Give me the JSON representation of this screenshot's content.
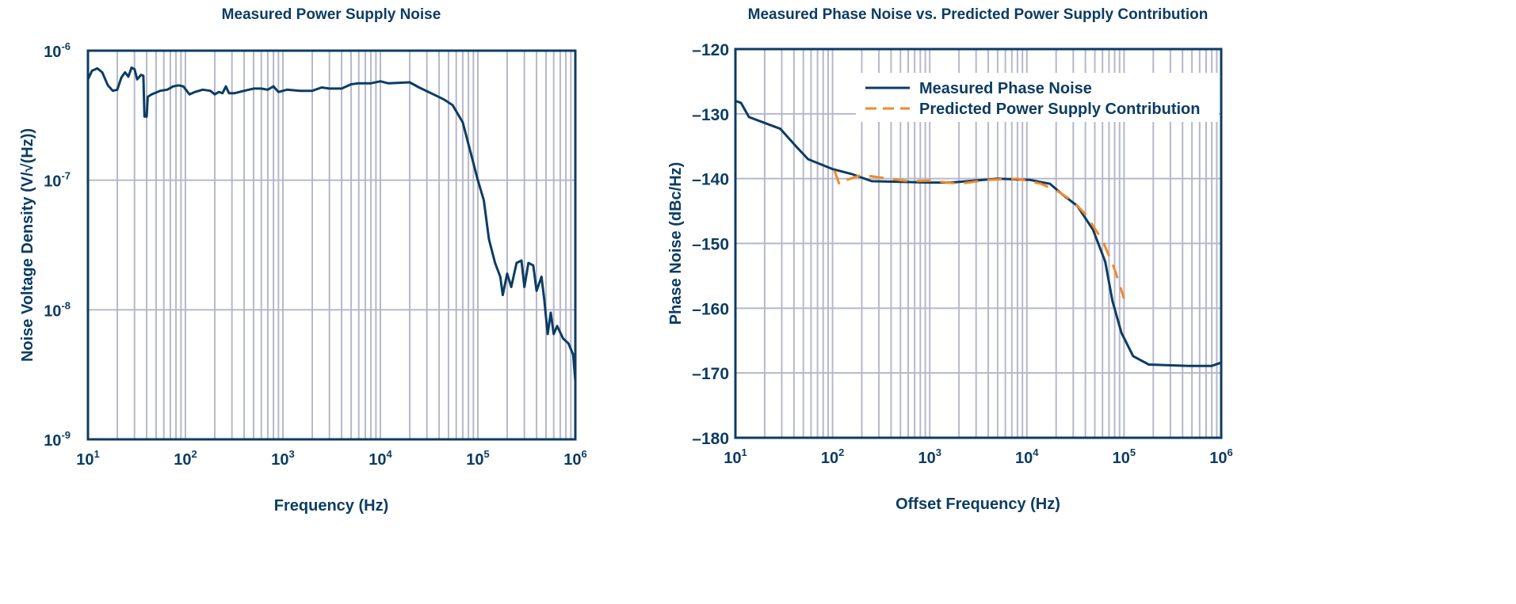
{
  "colors": {
    "navy": "#0c3c63",
    "grid": "#b6b8ca",
    "orange": "#f08a2a"
  },
  "chart_data": [
    {
      "type": "line",
      "title": "Measured Power Supply Noise",
      "xlabel": "Frequency (Hz)",
      "ylabel": "Noise Voltage Density (V/√(Hz))",
      "xscale": "log",
      "yscale": "log",
      "xlim": [
        10,
        1000000
      ],
      "ylim": [
        1e-09,
        1e-06
      ],
      "grid": true,
      "xticks": [
        {
          "base": "10",
          "exp": "1"
        },
        {
          "base": "10",
          "exp": "2"
        },
        {
          "base": "10",
          "exp": "3"
        },
        {
          "base": "10",
          "exp": "4"
        },
        {
          "base": "10",
          "exp": "5"
        },
        {
          "base": "10",
          "exp": "6"
        }
      ],
      "yticks": [
        {
          "base": "10",
          "exp": "-6"
        },
        {
          "base": "10",
          "exp": "-7"
        },
        {
          "base": "10",
          "exp": "-8"
        },
        {
          "base": "10",
          "exp": "-9"
        }
      ],
      "series": [
        {
          "name": "Measured Power Supply Noise",
          "style": "solid",
          "points": [
            [
              10,
              6e-07
            ],
            [
              11,
              7e-07
            ],
            [
              12.5,
              7.3e-07
            ],
            [
              14,
              6.8e-07
            ],
            [
              16,
              5.4e-07
            ],
            [
              18,
              4.9e-07
            ],
            [
              20,
              5e-07
            ],
            [
              22,
              6.2e-07
            ],
            [
              24,
              6.8e-07
            ],
            [
              26,
              6.3e-07
            ],
            [
              28,
              7.4e-07
            ],
            [
              30,
              7.2e-07
            ],
            [
              32,
              6e-07
            ],
            [
              35,
              6.5e-07
            ],
            [
              37,
              6.4e-07
            ],
            [
              38,
              3.1e-07
            ],
            [
              40,
              3.1e-07
            ],
            [
              41,
              4.4e-07
            ],
            [
              45,
              4.6e-07
            ],
            [
              55,
              4.9e-07
            ],
            [
              65,
              5e-07
            ],
            [
              75,
              5.3e-07
            ],
            [
              85,
              5.4e-07
            ],
            [
              95,
              5.3e-07
            ],
            [
              110,
              4.6e-07
            ],
            [
              125,
              4.8e-07
            ],
            [
              150,
              5e-07
            ],
            [
              180,
              4.9e-07
            ],
            [
              200,
              4.6e-07
            ],
            [
              220,
              4.8e-07
            ],
            [
              240,
              4.7e-07
            ],
            [
              260,
              5.3e-07
            ],
            [
              280,
              4.7e-07
            ],
            [
              320,
              4.7e-07
            ],
            [
              400,
              4.9e-07
            ],
            [
              500,
              5.1e-07
            ],
            [
              600,
              5.1e-07
            ],
            [
              700,
              5e-07
            ],
            [
              800,
              5.3e-07
            ],
            [
              900,
              4.8e-07
            ],
            [
              1100,
              5e-07
            ],
            [
              1500,
              4.9e-07
            ],
            [
              2000,
              4.9e-07
            ],
            [
              2500,
              5.2e-07
            ],
            [
              3000,
              5.1e-07
            ],
            [
              4000,
              5.1e-07
            ],
            [
              5000,
              5.5e-07
            ],
            [
              6000,
              5.6e-07
            ],
            [
              8000,
              5.6e-07
            ],
            [
              10000,
              5.8e-07
            ],
            [
              12000,
              5.6e-07
            ],
            [
              20000,
              5.7e-07
            ],
            [
              25000,
              5.2e-07
            ],
            [
              35000,
              4.6e-07
            ],
            [
              45000,
              4.2e-07
            ],
            [
              55000,
              3.8e-07
            ],
            [
              70000,
              2.8e-07
            ],
            [
              85000,
              1.6e-07
            ],
            [
              100000,
              1e-07
            ],
            [
              115000,
              7e-08
            ],
            [
              130000,
              3.5e-08
            ],
            [
              150000,
              2.3e-08
            ],
            [
              170000,
              1.8e-08
            ],
            [
              180000,
              1.3e-08
            ],
            [
              200000,
              1.9e-08
            ],
            [
              220000,
              1.5e-08
            ],
            [
              250000,
              2.3e-08
            ],
            [
              280000,
              2.4e-08
            ],
            [
              300000,
              1.5e-08
            ],
            [
              330000,
              2.3e-08
            ],
            [
              370000,
              2.2e-08
            ],
            [
              400000,
              1.4e-08
            ],
            [
              450000,
              1.8e-08
            ],
            [
              480000,
              1.2e-08
            ],
            [
              520000,
              6.5e-09
            ],
            [
              560000,
              9.5e-09
            ],
            [
              600000,
              6.5e-09
            ],
            [
              650000,
              7.5e-09
            ],
            [
              750000,
              6e-09
            ],
            [
              850000,
              5.5e-09
            ],
            [
              950000,
              4.5e-09
            ],
            [
              1000000,
              2.8e-09
            ]
          ]
        }
      ]
    },
    {
      "type": "line",
      "title": "Measured Phase Noise vs. Predicted Power Supply Contribution",
      "xlabel": "Offset Frequency (Hz)",
      "ylabel": "Phase Noise (dBc/Hz)",
      "xscale": "log",
      "yscale": "linear",
      "xlim": [
        10,
        1000000
      ],
      "ylim": [
        -180,
        -120
      ],
      "grid": true,
      "legend_position": "top-right",
      "xticks": [
        {
          "base": "10",
          "exp": "1"
        },
        {
          "base": "10",
          "exp": "2"
        },
        {
          "base": "10",
          "exp": "3"
        },
        {
          "base": "10",
          "exp": "4"
        },
        {
          "base": "10",
          "exp": "5"
        },
        {
          "base": "10",
          "exp": "6"
        }
      ],
      "yticks": [
        "–120",
        "–130",
        "–140",
        "–150",
        "–160",
        "–170",
        "–180"
      ],
      "ytick_values": [
        -120,
        -130,
        -140,
        -150,
        -160,
        -170,
        -180
      ],
      "series": [
        {
          "name": "Measured Phase Noise",
          "style": "solid",
          "points": [
            [
              10,
              -128
            ],
            [
              11.4,
              -128.3
            ],
            [
              13.8,
              -130.5
            ],
            [
              20,
              -131.4
            ],
            [
              29,
              -132.3
            ],
            [
              42,
              -135
            ],
            [
              56,
              -137
            ],
            [
              99,
              -138.5
            ],
            [
              158,
              -139.3
            ],
            [
              253,
              -140.4
            ],
            [
              1000,
              -140.6
            ],
            [
              1650,
              -140.6
            ],
            [
              5000,
              -140.0
            ],
            [
              10800,
              -140.2
            ],
            [
              17300,
              -140.8
            ],
            [
              23000,
              -142.4
            ],
            [
              33000,
              -144.2
            ],
            [
              48000,
              -147.9
            ],
            [
              64000,
              -152.8
            ],
            [
              76000,
              -158.9
            ],
            [
              94000,
              -163.8
            ],
            [
              124000,
              -167.4
            ],
            [
              180000,
              -168.7
            ],
            [
              460000,
              -168.9
            ],
            [
              800000,
              -168.9
            ],
            [
              1000000,
              -168.4
            ]
          ]
        },
        {
          "name": "Predicted Power Supply Contribution",
          "style": "dashed",
          "points": [
            [
              105,
              -138.8
            ],
            [
              118,
              -141.0
            ],
            [
              140,
              -140.2
            ],
            [
              200,
              -139.4
            ],
            [
              300,
              -139.8
            ],
            [
              600,
              -140.4
            ],
            [
              1000,
              -140.3
            ],
            [
              2000,
              -140.8
            ],
            [
              4000,
              -140.2
            ],
            [
              8000,
              -140.0
            ],
            [
              14000,
              -140.8
            ],
            [
              20000,
              -141.8
            ],
            [
              30000,
              -143.5
            ],
            [
              40000,
              -145.5
            ],
            [
              60000,
              -149.5
            ],
            [
              80000,
              -154
            ],
            [
              100000,
              -158.5
            ]
          ]
        }
      ]
    }
  ]
}
